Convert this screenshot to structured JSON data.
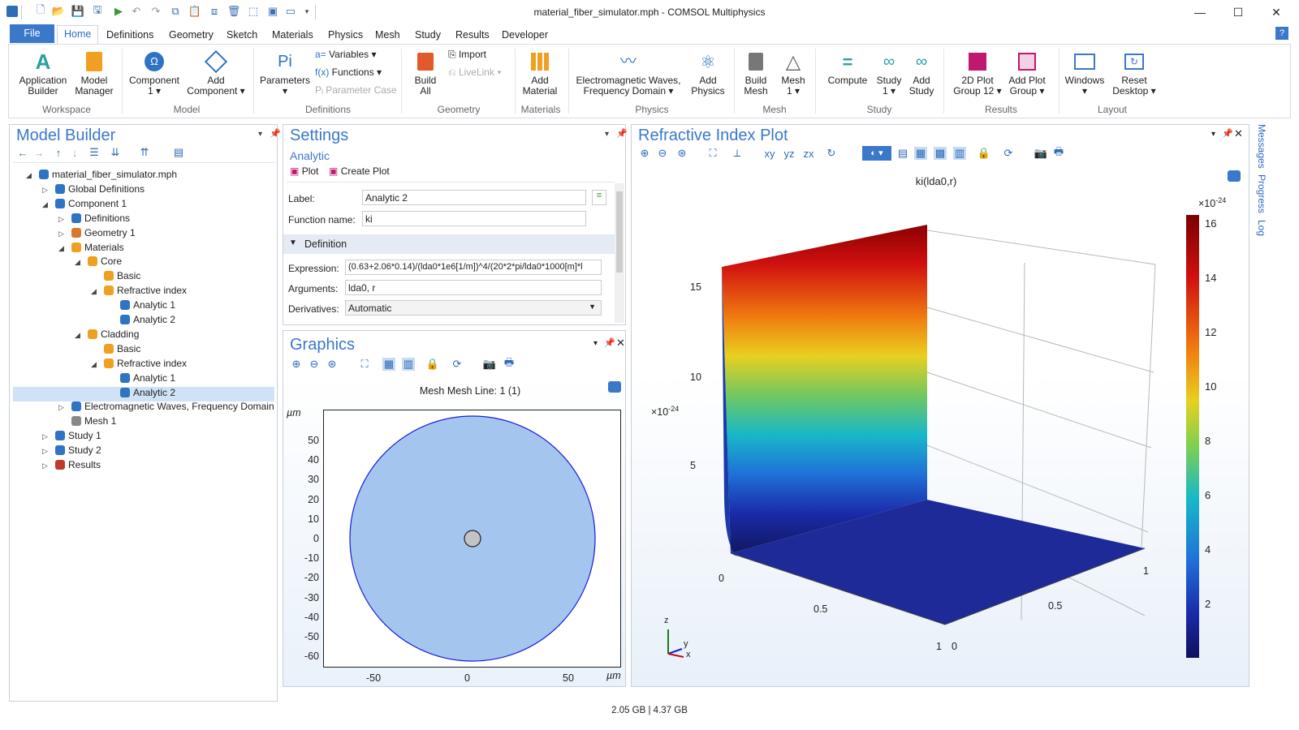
{
  "window": {
    "title": "material_fiber_simulator.mph - COMSOL Multiphysics",
    "minimize": "—",
    "maximize": "☐",
    "close": "✕"
  },
  "menu": {
    "file": "File",
    "tabs": [
      "Home",
      "Definitions",
      "Geometry",
      "Sketch",
      "Materials",
      "Physics",
      "Mesh",
      "Study",
      "Results",
      "Developer"
    ],
    "help": "?"
  },
  "ribbon": {
    "app_builder": [
      "Application",
      "Builder"
    ],
    "model_manager": [
      "Model",
      "Manager"
    ],
    "component": [
      "Component",
      "1 ▾"
    ],
    "add_component": [
      "Add",
      "Component ▾"
    ],
    "parameters": [
      "Parameters",
      "▾"
    ],
    "variables": "Variables ▾",
    "functions": "Functions ▾",
    "parameter_case": "Parameter Case",
    "import": "Import",
    "livelink": "LiveLink ▾",
    "build_all": [
      "Build",
      "All"
    ],
    "add_material": [
      "Add",
      "Material"
    ],
    "em_waves": [
      "Electromagnetic Waves,",
      "Frequency Domain ▾"
    ],
    "add_physics": [
      "Add",
      "Physics"
    ],
    "build_mesh": [
      "Build",
      "Mesh"
    ],
    "mesh1": [
      "Mesh",
      "1 ▾"
    ],
    "compute": "Compute",
    "study1": [
      "Study",
      "1 ▾"
    ],
    "add_study": [
      "Add",
      "Study"
    ],
    "plot_group": [
      "2D Plot",
      "Group 12 ▾"
    ],
    "add_plot_group": [
      "Add Plot",
      "Group ▾"
    ],
    "windows": [
      "Windows",
      "▾"
    ],
    "reset_desktop": [
      "Reset",
      "Desktop ▾"
    ],
    "groups": [
      "Workspace",
      "Model",
      "Definitions",
      "Geometry",
      "Materials",
      "Physics",
      "Mesh",
      "Study",
      "Results",
      "Layout"
    ]
  },
  "model_builder": {
    "title": "Model Builder",
    "tree": [
      {
        "label": "material_fiber_simulator.mph",
        "level": 0,
        "arrow": "◢",
        "icon": "#2f73c4"
      },
      {
        "label": "Global Definitions",
        "level": 1,
        "arrow": "▷",
        "icon": "#2f73c4"
      },
      {
        "label": "Component 1",
        "level": 1,
        "arrow": "◢",
        "icon": "#2f73c4"
      },
      {
        "label": "Definitions",
        "level": 2,
        "arrow": "▷",
        "icon": "#2f73c4"
      },
      {
        "label": "Geometry 1",
        "level": 2,
        "arrow": "▷",
        "icon": "#d9772b"
      },
      {
        "label": "Materials",
        "level": 2,
        "arrow": "◢",
        "icon": "#f0a020"
      },
      {
        "label": "Core",
        "level": 3,
        "arrow": "◢",
        "icon": "#f0a020"
      },
      {
        "label": "Basic",
        "level": 4,
        "arrow": "",
        "icon": "#f0a020"
      },
      {
        "label": "Refractive index",
        "level": 4,
        "arrow": "◢",
        "icon": "#f0a020"
      },
      {
        "label": "Analytic 1",
        "level": 5,
        "arrow": "",
        "icon": "#2f73c4"
      },
      {
        "label": "Analytic 2",
        "level": 5,
        "arrow": "",
        "icon": "#2f73c4"
      },
      {
        "label": "Cladding",
        "level": 3,
        "arrow": "◢",
        "icon": "#f0a020"
      },
      {
        "label": "Basic",
        "level": 4,
        "arrow": "",
        "icon": "#f0a020"
      },
      {
        "label": "Refractive index",
        "level": 4,
        "arrow": "◢",
        "icon": "#f0a020"
      },
      {
        "label": "Analytic 1",
        "level": 5,
        "arrow": "",
        "icon": "#2f73c4"
      },
      {
        "label": "Analytic 2",
        "level": 5,
        "arrow": "",
        "icon": "#2f73c4",
        "selected": true
      },
      {
        "label": "Electromagnetic Waves, Frequency Domain",
        "level": 2,
        "arrow": "▷",
        "icon": "#2f73c4"
      },
      {
        "label": "Mesh 1",
        "level": 2,
        "arrow": "",
        "icon": "#888888"
      },
      {
        "label": "Study 1",
        "level": 1,
        "arrow": "▷",
        "icon": "#2f73c4"
      },
      {
        "label": "Study 2",
        "level": 1,
        "arrow": "▷",
        "icon": "#2f73c4"
      },
      {
        "label": "Results",
        "level": 1,
        "arrow": "▷",
        "icon": "#c0392b"
      }
    ]
  },
  "settings": {
    "title": "Settings",
    "subtitle": "Analytic",
    "plot": "Plot",
    "create_plot": "Create Plot",
    "label_caption": "Label:",
    "label_value": "Analytic 2",
    "fname_caption": "Function name:",
    "fname_value": "ki",
    "section": "Definition",
    "expr_caption": "Expression:",
    "expr_value": "(0.63+2.06*0.14)/(lda0*1e6[1/m])^4/(20*2*pi/lda0*1000[m]*l",
    "args_caption": "Arguments:",
    "args_value": "lda0, r",
    "deriv_caption": "Derivatives:",
    "deriv_value": "Automatic"
  },
  "graphics": {
    "title": "Graphics",
    "plot_title": "Mesh Mesh  Line: 1 (1)",
    "unit_y": "µm",
    "unit_x": "µm",
    "yticks": [
      "50",
      "40",
      "30",
      "20",
      "10",
      "0",
      "-10",
      "-20",
      "-30",
      "-40",
      "-50",
      "-60"
    ],
    "xticks": [
      "-50",
      "0",
      "50"
    ]
  },
  "plot3d": {
    "title": "Refractive Index Plot",
    "plot_title": "ki(lda0,r)",
    "zscale": "×10",
    "zscale_exp": "-24",
    "cb_scale": "×10",
    "cb_scale_exp": "-24",
    "zticks": [
      "15",
      "10",
      "5"
    ],
    "axis_labels": [
      "0",
      "0.5",
      "1",
      "0",
      "0.5",
      "1"
    ],
    "triad": [
      "z",
      "y",
      "x"
    ],
    "colorbar_ticks": [
      "16",
      "14",
      "12",
      "10",
      "8",
      "6",
      "4",
      "2"
    ]
  },
  "side_tabs": [
    "Messages",
    "Progress",
    "Log"
  ],
  "status": "2.05 GB | 4.37 GB"
}
